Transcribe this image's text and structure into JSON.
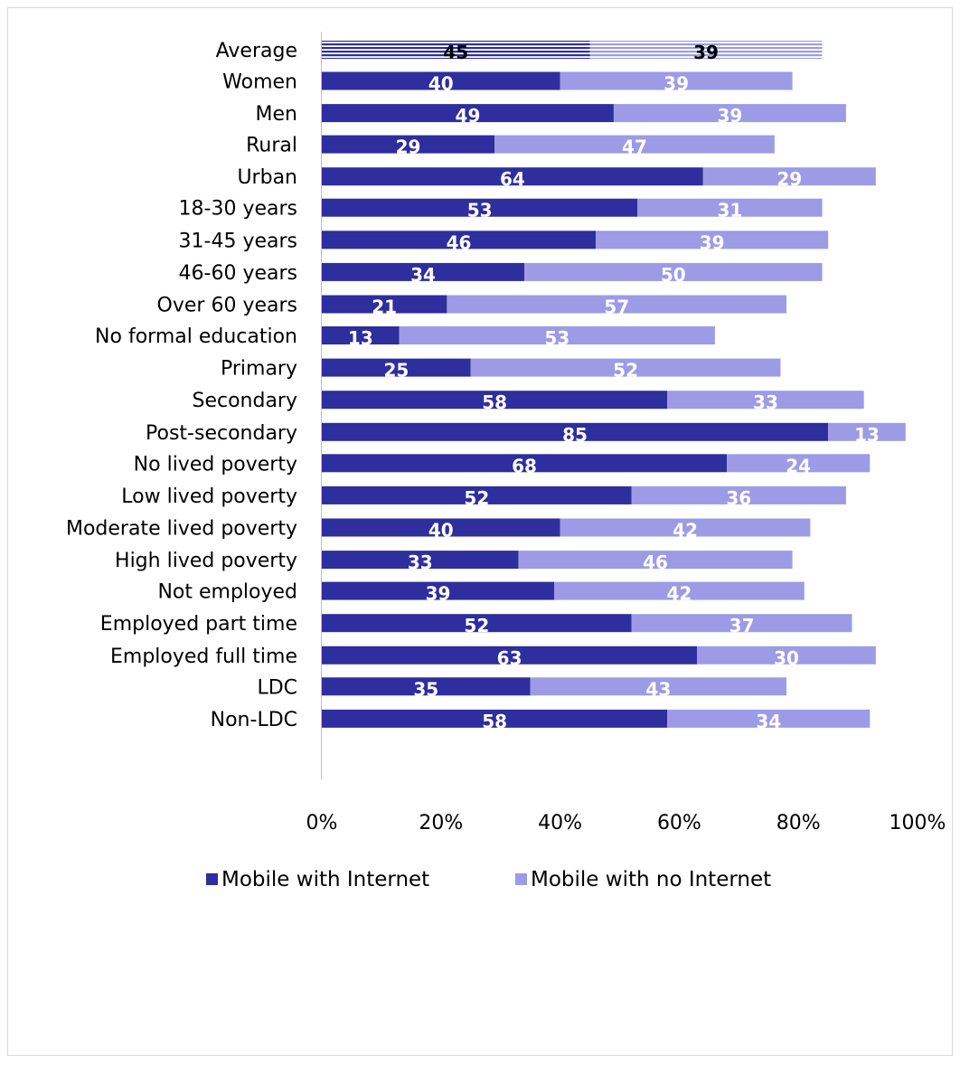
{
  "chart_data": {
    "type": "bar",
    "orientation": "horizontal",
    "stacked": true,
    "categories": [
      "Average",
      "Women",
      "Men",
      "Rural",
      "Urban",
      "18-30 years",
      "31-45 years",
      "46-60 years",
      "Over 60 years",
      "No formal education",
      "Primary",
      "Secondary",
      "Post-secondary",
      "No lived poverty",
      "Low lived poverty",
      "Moderate lived poverty",
      "High lived poverty",
      "Not employed",
      "Employed part time",
      "Employed full time",
      "LDC",
      "Non-LDC"
    ],
    "groups": [
      [
        0
      ],
      [
        1,
        2
      ],
      [
        3,
        4
      ],
      [
        5,
        6,
        7,
        8
      ],
      [
        9,
        10,
        11,
        12
      ],
      [
        13,
        14,
        15,
        16
      ],
      [
        17,
        18,
        19
      ],
      [
        20,
        21
      ]
    ],
    "series": [
      {
        "name": "Mobile with Internet",
        "color": "#2e2e9e",
        "values": [
          45,
          40,
          49,
          29,
          64,
          53,
          46,
          34,
          21,
          13,
          25,
          58,
          85,
          68,
          52,
          40,
          33,
          39,
          52,
          63,
          35,
          58
        ]
      },
      {
        "name": "Mobile with no Internet",
        "color": "#9d9be6",
        "values": [
          39,
          39,
          39,
          47,
          29,
          31,
          39,
          50,
          57,
          53,
          52,
          33,
          13,
          24,
          36,
          42,
          46,
          42,
          37,
          30,
          43,
          34
        ]
      }
    ],
    "xlim": [
      0,
      100
    ],
    "xticks": [
      "0%",
      "20%",
      "40%",
      "60%",
      "80%",
      "100%"
    ],
    "legend": {
      "position": "bottom",
      "items": [
        "Mobile with Internet",
        "Mobile with no Internet"
      ]
    },
    "grid": false,
    "highlight_category": "Average",
    "highlight_style": "horizontal stripes"
  }
}
